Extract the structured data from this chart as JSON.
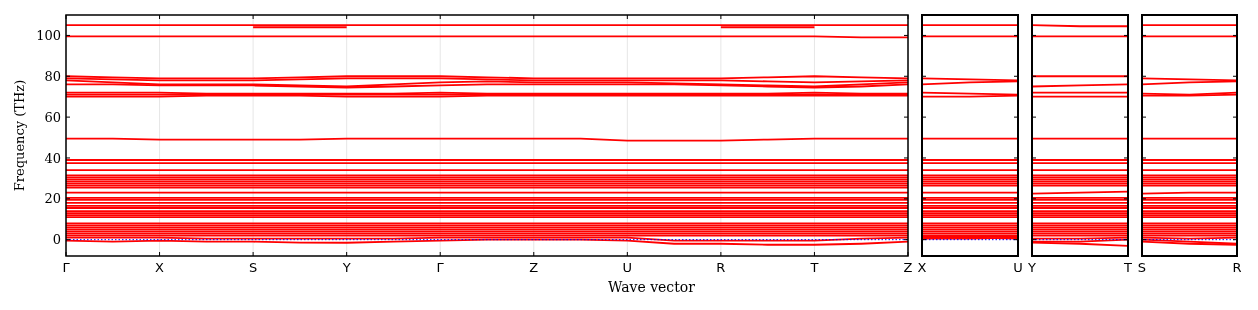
{
  "chart_data": [
    {
      "type": "line",
      "ylabel": "Frequency (THz)",
      "xlabel": "Wave vector",
      "color": "#ff0000",
      "grid": "x",
      "categories": [
        "Γ",
        null,
        "X",
        null,
        "S",
        null,
        "Y",
        null,
        "Γ",
        null,
        "Z",
        null,
        "U",
        null,
        "R",
        null,
        "T",
        null,
        "Z"
      ],
      "ylim": [
        -8,
        110
      ],
      "yticks": [
        0,
        20,
        40,
        60,
        80,
        100
      ],
      "ref_lines": [
        {
          "axis": "y",
          "value": 0,
          "color": "#0000ff",
          "line_style": "dotted"
        }
      ],
      "series": [
        {
          "values": [
            105,
            105,
            105,
            105,
            105,
            105,
            105,
            105,
            105,
            105,
            105,
            105,
            105,
            105,
            105,
            105,
            105,
            105,
            105
          ]
        },
        {
          "values": [
            null,
            null,
            null,
            null,
            104,
            104,
            104,
            null,
            null,
            null,
            null,
            null,
            null,
            null,
            104,
            104,
            104,
            null,
            null
          ]
        },
        {
          "values": [
            99.5,
            99.5,
            99.5,
            99.5,
            99.5,
            99.5,
            99.5,
            99.5,
            99.5,
            99.5,
            99.5,
            99.5,
            99.5,
            99.5,
            99.5,
            99.5,
            99.5,
            99,
            99
          ]
        },
        {
          "values": [
            80,
            79.5,
            79,
            79,
            79,
            79.5,
            80,
            80,
            80,
            79.5,
            79,
            79,
            79,
            79,
            79,
            79.5,
            80,
            79.5,
            79
          ]
        },
        {
          "values": [
            79,
            78.5,
            78,
            78,
            78,
            78.5,
            79,
            79,
            79,
            78.5,
            78,
            78,
            78,
            78,
            78,
            77.5,
            77,
            77.5,
            78
          ]
        },
        {
          "values": [
            78,
            77,
            76,
            76,
            76,
            75.5,
            75,
            76,
            77,
            77.5,
            77,
            77,
            77,
            76.5,
            76,
            75.5,
            75,
            76,
            77
          ]
        },
        {
          "values": [
            76,
            76,
            75.5,
            75.5,
            75.5,
            75,
            74.5,
            75,
            75.5,
            76,
            76,
            76,
            76,
            76,
            75.5,
            75,
            74.5,
            75,
            76
          ]
        },
        {
          "values": [
            72,
            72,
            72,
            71.5,
            71.5,
            71.5,
            71.5,
            71.5,
            72,
            71.5,
            71.5,
            71.5,
            71.5,
            71.5,
            71.5,
            71.5,
            72,
            71.5,
            71.5
          ]
        },
        {
          "values": [
            71,
            71,
            71,
            71,
            71,
            71,
            71,
            71,
            71,
            71,
            71,
            71,
            71,
            71,
            71,
            71,
            71,
            71,
            71
          ]
        },
        {
          "values": [
            70,
            70,
            70,
            70.5,
            70.5,
            70.5,
            70,
            70,
            70,
            70.5,
            70.5,
            70.5,
            70.5,
            70.5,
            70.5,
            70.5,
            70.5,
            70.5,
            70.5
          ]
        },
        {
          "values": [
            49.5,
            49.5,
            49,
            49,
            49,
            49,
            49.5,
            49.5,
            49.5,
            49.5,
            49.5,
            49.5,
            48.5,
            48.5,
            48.5,
            49,
            49.5,
            49.5,
            49.5
          ]
        },
        {
          "values": [
            39,
            39,
            39,
            39,
            39,
            39,
            39,
            39,
            39,
            39,
            39,
            39,
            39,
            39,
            39,
            39,
            39,
            39,
            39
          ]
        },
        {
          "values": [
            37.5,
            37.5,
            37.5,
            37.5,
            37.5,
            37.5,
            37.5,
            37.5,
            37.5,
            37.5,
            37.5,
            37.5,
            37.5,
            37.5,
            37.5,
            37.5,
            37.5,
            37.5,
            37.5
          ]
        },
        {
          "values": [
            34,
            34,
            34,
            34,
            34,
            34,
            34,
            34,
            34,
            34,
            34,
            34,
            34,
            34,
            34,
            34,
            34,
            34,
            34
          ]
        },
        {
          "values": [
            31.5,
            31.5,
            31.5,
            31.5,
            31.5,
            31.5,
            31.5,
            31.5,
            31.5,
            31.5,
            31.5,
            31.5,
            31.5,
            31.5,
            31.5,
            31.5,
            31.5,
            31.5,
            31.5
          ]
        },
        {
          "values": [
            30.5,
            30.5,
            30.5,
            30.5,
            30.5,
            30.5,
            30.5,
            30.5,
            30.5,
            30.5,
            30.5,
            30.5,
            30.5,
            30.5,
            30.5,
            30.5,
            30.5,
            30.5,
            30.5
          ]
        },
        {
          "values": [
            29.5,
            29.5,
            29.5,
            29.5,
            29.5,
            29.5,
            29.5,
            29.5,
            29.5,
            29.5,
            29.5,
            29.5,
            29.5,
            29.5,
            29.5,
            29.5,
            29.5,
            29.5,
            29.5
          ]
        },
        {
          "values": [
            28.5,
            28.5,
            28.5,
            28.5,
            28.5,
            28.5,
            28.5,
            28.5,
            28.5,
            28.5,
            28.5,
            28.5,
            28.5,
            28.5,
            28.5,
            28.5,
            28.5,
            28.5,
            28.5
          ]
        },
        {
          "values": [
            27.5,
            27.5,
            27.5,
            27.5,
            27.5,
            27.5,
            27.5,
            27.5,
            27.5,
            27.5,
            27.5,
            27.5,
            27.5,
            27.5,
            27.5,
            27.5,
            27.5,
            27.5,
            27.5
          ]
        },
        {
          "values": [
            26.5,
            26.5,
            26.5,
            26.5,
            26.5,
            26.5,
            26.5,
            26.5,
            26.5,
            26.5,
            26.5,
            26.5,
            26.5,
            26.5,
            26.5,
            26.5,
            26.5,
            26.5,
            26.5
          ]
        },
        {
          "values": [
            25.5,
            25.5,
            25.5,
            25.5,
            25.5,
            25.5,
            25.5,
            25.5,
            25.5,
            25.5,
            25.5,
            25.5,
            25.5,
            25.5,
            25.5,
            25.5,
            25.5,
            25.5,
            25.5
          ]
        },
        {
          "values": [
            23,
            23,
            23,
            23,
            23,
            23,
            23,
            23,
            23,
            23,
            23,
            23,
            23,
            23,
            23,
            23,
            23,
            23,
            23
          ]
        },
        {
          "values": [
            20.5,
            20.5,
            20.5,
            20.5,
            20.5,
            20.5,
            20.5,
            20.5,
            20.5,
            20.5,
            20.5,
            20.5,
            20.5,
            20.5,
            20.5,
            20.5,
            20.5,
            20.5,
            20.5
          ]
        },
        {
          "values": [
            19.5,
            19.5,
            19.5,
            19.5,
            19.5,
            19.5,
            19.5,
            19.5,
            19.5,
            19.5,
            19.5,
            19.5,
            19.5,
            19.5,
            19.5,
            19.5,
            19.5,
            19.5,
            19.5
          ]
        },
        {
          "values": [
            18,
            18,
            18,
            18,
            18,
            18,
            18,
            18,
            18,
            18,
            18,
            18,
            18,
            18,
            18,
            18,
            18,
            18,
            18
          ]
        },
        {
          "values": [
            16.5,
            16.5,
            16.5,
            16.5,
            16.5,
            16.5,
            16.5,
            16.5,
            16.5,
            16.5,
            16.5,
            16.5,
            16.5,
            16.5,
            16.5,
            16.5,
            16.5,
            16.5,
            16.5
          ]
        },
        {
          "values": [
            15.5,
            15.5,
            15.5,
            15.5,
            15.5,
            15.5,
            15.5,
            15.5,
            15.5,
            15.5,
            15.5,
            15.5,
            15.5,
            15.5,
            15.5,
            15.5,
            15.5,
            15.5,
            15.5
          ]
        },
        {
          "values": [
            14,
            14,
            14,
            14,
            14,
            14,
            14,
            14,
            14,
            14,
            14,
            14,
            14,
            14,
            14,
            14,
            14,
            14,
            14
          ]
        },
        {
          "values": [
            13,
            13,
            13,
            13,
            13,
            13,
            13,
            13,
            13,
            13,
            13,
            13,
            13,
            13,
            13,
            13,
            13,
            13,
            13
          ]
        },
        {
          "values": [
            12,
            12,
            12,
            12,
            12,
            12,
            12,
            12,
            12,
            12,
            12,
            12,
            12,
            12,
            12,
            12,
            12,
            12,
            12
          ]
        },
        {
          "values": [
            11,
            11,
            11,
            11,
            11,
            11,
            11,
            11,
            11,
            11,
            11,
            11,
            11,
            11,
            11,
            11,
            11,
            11,
            11
          ]
        },
        {
          "values": [
            8,
            8,
            8,
            8,
            8,
            8,
            8,
            8,
            8,
            8,
            8,
            8,
            8,
            8,
            8,
            8,
            8,
            8,
            8
          ]
        },
        {
          "values": [
            7,
            7,
            7,
            7,
            7,
            7,
            7,
            7,
            7,
            7,
            7,
            7,
            7,
            7,
            7,
            7,
            7,
            7,
            7
          ]
        },
        {
          "values": [
            6,
            6,
            6,
            6,
            6,
            6,
            6,
            6,
            6,
            6,
            6,
            6,
            6,
            6,
            6,
            6,
            6,
            6,
            6
          ]
        },
        {
          "values": [
            5,
            5,
            5,
            5,
            5,
            5,
            5,
            5,
            5,
            5,
            5,
            5,
            5,
            5,
            5,
            5,
            5,
            5,
            5
          ]
        },
        {
          "values": [
            4,
            4,
            4,
            4,
            4,
            4,
            4,
            4,
            4,
            4,
            4,
            4,
            4,
            4,
            4,
            4,
            4,
            4,
            4
          ]
        },
        {
          "values": [
            3,
            3,
            3,
            3,
            3,
            3,
            3,
            3,
            3,
            3,
            3,
            3,
            3,
            3,
            3,
            3,
            3,
            3,
            3
          ]
        },
        {
          "values": [
            2,
            2,
            2,
            2,
            2,
            2,
            2,
            2,
            2,
            2,
            2,
            2,
            2,
            2,
            2,
            2,
            2,
            2,
            2
          ]
        },
        {
          "values": [
            -0.5,
            -1,
            -0.5,
            -1,
            -1,
            -1.5,
            -1.5,
            -1,
            -0.5,
            0,
            0,
            0,
            -0.5,
            -2,
            -2,
            -2.5,
            -2.5,
            -2,
            -1
          ]
        },
        {
          "values": [
            1,
            1,
            1,
            0.5,
            0.5,
            0.5,
            0.5,
            0.5,
            1,
            1,
            1,
            1,
            1,
            -0.5,
            -0.5,
            -0.5,
            -0.5,
            0.5,
            1
          ]
        }
      ]
    },
    {
      "type": "line",
      "color": "#ff0000",
      "tick_labels": "x",
      "categories": [
        "X",
        null,
        "U"
      ],
      "ylim": [
        -8,
        110
      ],
      "yticks": [
        0,
        20,
        40,
        60,
        80,
        100
      ],
      "ref_lines": [
        {
          "axis": "y",
          "value": 0,
          "color": "#0000ff",
          "line_style": "dotted"
        }
      ],
      "series": [
        {
          "values": [
            105,
            105,
            105
          ]
        },
        {
          "values": [
            99.5,
            99.5,
            99.5
          ]
        },
        {
          "values": [
            79,
            78.5,
            78
          ]
        },
        {
          "values": [
            76,
            77,
            77.5
          ]
        },
        {
          "values": [
            72,
            71.5,
            71
          ]
        },
        {
          "values": [
            70,
            70,
            70.5
          ]
        },
        {
          "values": [
            49.5,
            49.5,
            49.5
          ]
        },
        {
          "values": [
            39,
            39,
            39
          ]
        },
        {
          "values": [
            37.5,
            37.5,
            37.5
          ]
        },
        {
          "values": [
            34,
            34,
            34
          ]
        },
        {
          "values": [
            31.5,
            31.5,
            31.5
          ]
        },
        {
          "values": [
            30.5,
            30.5,
            30.5
          ]
        },
        {
          "values": [
            29.5,
            29.5,
            29.5
          ]
        },
        {
          "values": [
            28.5,
            28.5,
            28.5
          ]
        },
        {
          "values": [
            27.5,
            27.5,
            27.5
          ]
        },
        {
          "values": [
            26.5,
            26.5,
            26.5
          ]
        },
        {
          "values": [
            23,
            23,
            23
          ]
        },
        {
          "values": [
            20.5,
            20.5,
            20.5
          ]
        },
        {
          "values": [
            19.5,
            19.5,
            19.5
          ]
        },
        {
          "values": [
            18,
            18,
            18
          ]
        },
        {
          "values": [
            16.5,
            16.5,
            16.5
          ]
        },
        {
          "values": [
            15.5,
            15.5,
            15.5
          ]
        },
        {
          "values": [
            14,
            14,
            14
          ]
        },
        {
          "values": [
            13,
            13,
            13
          ]
        },
        {
          "values": [
            12,
            12,
            12
          ]
        },
        {
          "values": [
            11,
            11,
            11
          ]
        },
        {
          "values": [
            8,
            8,
            8
          ]
        },
        {
          "values": [
            7,
            7,
            7
          ]
        },
        {
          "values": [
            6,
            6,
            6
          ]
        },
        {
          "values": [
            5,
            5,
            5
          ]
        },
        {
          "values": [
            4,
            4,
            4
          ]
        },
        {
          "values": [
            3,
            3,
            3
          ]
        },
        {
          "values": [
            2,
            2,
            2
          ]
        },
        {
          "values": [
            0.5,
            0.5,
            1
          ]
        },
        {
          "values": [
            1,
            1,
            0.5
          ]
        },
        {
          "values": [
            1.5,
            1.5,
            1.5
          ]
        }
      ]
    },
    {
      "type": "line",
      "color": "#ff0000",
      "tick_labels": "x",
      "categories": [
        "Y",
        null,
        "T"
      ],
      "ylim": [
        -8,
        110
      ],
      "yticks": [
        0,
        20,
        40,
        60,
        80,
        100
      ],
      "ref_lines": [
        {
          "axis": "y",
          "value": 0,
          "color": "#0000ff",
          "line_style": "dotted"
        }
      ],
      "series": [
        {
          "values": [
            105,
            104.5,
            104.5
          ]
        },
        {
          "values": [
            99.5,
            99.5,
            99.5
          ]
        },
        {
          "values": [
            80,
            80,
            80
          ]
        },
        {
          "values": [
            75,
            75.5,
            76
          ]
        },
        {
          "values": [
            72,
            72,
            72
          ]
        },
        {
          "values": [
            70,
            70,
            70
          ]
        },
        {
          "values": [
            49.5,
            49.5,
            49.5
          ]
        },
        {
          "values": [
            39,
            39,
            39
          ]
        },
        {
          "values": [
            37.5,
            37.5,
            37.5
          ]
        },
        {
          "values": [
            34,
            34,
            34
          ]
        },
        {
          "values": [
            31.5,
            31.5,
            31.5
          ]
        },
        {
          "values": [
            30.5,
            30.5,
            30.5
          ]
        },
        {
          "values": [
            29.5,
            29.5,
            29.5
          ]
        },
        {
          "values": [
            28.5,
            28.5,
            28.5
          ]
        },
        {
          "values": [
            27.5,
            27.5,
            27.5
          ]
        },
        {
          "values": [
            26.5,
            26.5,
            26.5
          ]
        },
        {
          "values": [
            22.5,
            23,
            23.5
          ]
        },
        {
          "values": [
            20.5,
            20.5,
            20.5
          ]
        },
        {
          "values": [
            19.5,
            19.5,
            19.5
          ]
        },
        {
          "values": [
            18,
            18,
            18
          ]
        },
        {
          "values": [
            16.5,
            16.5,
            16.5
          ]
        },
        {
          "values": [
            15.5,
            15.5,
            15.5
          ]
        },
        {
          "values": [
            14,
            14,
            14
          ]
        },
        {
          "values": [
            13,
            13,
            13
          ]
        },
        {
          "values": [
            12,
            12,
            12
          ]
        },
        {
          "values": [
            11,
            11,
            11
          ]
        },
        {
          "values": [
            8,
            8,
            8
          ]
        },
        {
          "values": [
            7,
            7,
            7
          ]
        },
        {
          "values": [
            6,
            6,
            6
          ]
        },
        {
          "values": [
            5,
            5,
            5
          ]
        },
        {
          "values": [
            4,
            4,
            4
          ]
        },
        {
          "values": [
            3,
            3,
            3
          ]
        },
        {
          "values": [
            2,
            2,
            2
          ]
        },
        {
          "values": [
            -1,
            -1,
            0
          ]
        },
        {
          "values": [
            -1.5,
            -2,
            -3
          ]
        },
        {
          "values": [
            0.5,
            0.5,
            1
          ]
        }
      ]
    },
    {
      "type": "line",
      "color": "#ff0000",
      "tick_labels": "x",
      "categories": [
        "S",
        null,
        "R"
      ],
      "ylim": [
        -8,
        110
      ],
      "yticks": [
        0,
        20,
        40,
        60,
        80,
        100
      ],
      "ref_lines": [
        {
          "axis": "y",
          "value": 0,
          "color": "#0000ff",
          "line_style": "dotted"
        }
      ],
      "series": [
        {
          "values": [
            105,
            105,
            105
          ]
        },
        {
          "values": [
            99.5,
            99.5,
            99.5
          ]
        },
        {
          "values": [
            79,
            78.5,
            78
          ]
        },
        {
          "values": [
            76,
            77,
            77.5
          ]
        },
        {
          "values": [
            71.5,
            71,
            72
          ]
        },
        {
          "values": [
            70.5,
            70.5,
            71
          ]
        },
        {
          "values": [
            49.5,
            49.5,
            49.5
          ]
        },
        {
          "values": [
            39,
            39,
            39
          ]
        },
        {
          "values": [
            37.5,
            37.5,
            37.5
          ]
        },
        {
          "values": [
            34,
            34,
            34
          ]
        },
        {
          "values": [
            31.5,
            31.5,
            31.5
          ]
        },
        {
          "values": [
            30.5,
            30.5,
            30.5
          ]
        },
        {
          "values": [
            29.5,
            29.5,
            29.5
          ]
        },
        {
          "values": [
            28.5,
            28.5,
            28.5
          ]
        },
        {
          "values": [
            27.5,
            27.5,
            27.5
          ]
        },
        {
          "values": [
            26.5,
            26.5,
            26.5
          ]
        },
        {
          "values": [
            22.5,
            23,
            23
          ]
        },
        {
          "values": [
            20.5,
            20.5,
            20.5
          ]
        },
        {
          "values": [
            19.5,
            19.5,
            19.5
          ]
        },
        {
          "values": [
            18,
            18,
            18
          ]
        },
        {
          "values": [
            16.5,
            16.5,
            16.5
          ]
        },
        {
          "values": [
            15.5,
            15.5,
            15.5
          ]
        },
        {
          "values": [
            14,
            14,
            14
          ]
        },
        {
          "values": [
            13,
            13,
            13
          ]
        },
        {
          "values": [
            12,
            12,
            12
          ]
        },
        {
          "values": [
            11,
            11,
            11
          ]
        },
        {
          "values": [
            8,
            8,
            8
          ]
        },
        {
          "values": [
            7,
            7,
            7
          ]
        },
        {
          "values": [
            6,
            6,
            6
          ]
        },
        {
          "values": [
            5,
            5,
            5
          ]
        },
        {
          "values": [
            4,
            4,
            4
          ]
        },
        {
          "values": [
            3,
            3,
            3
          ]
        },
        {
          "values": [
            2,
            2,
            2
          ]
        },
        {
          "values": [
            0,
            -1,
            -2
          ]
        },
        {
          "values": [
            -1,
            -2,
            -2.5
          ]
        },
        {
          "values": [
            1,
            0.5,
            1
          ]
        }
      ]
    }
  ]
}
